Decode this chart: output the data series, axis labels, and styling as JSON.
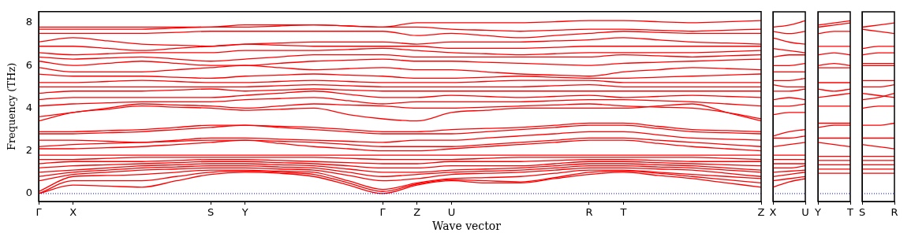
{
  "chart_data": [
    {
      "type": "line",
      "ylabel": "Frequency (THz)",
      "xlabel": "Wave vector",
      "ylim": [
        -0.37,
        8.52
      ],
      "yticks": [
        0,
        2,
        4,
        6,
        8
      ],
      "categories": [
        "Γ",
        "X",
        null,
        null,
        null,
        "S",
        "Y",
        null,
        null,
        null,
        "Γ",
        "Z",
        "U",
        null,
        null,
        null,
        "R",
        "T",
        null,
        null,
        null,
        "Z"
      ],
      "ref_lines": [
        {
          "axis": "y",
          "value": 0,
          "color": "#0000ff",
          "line_style": "dotted"
        }
      ],
      "series": [
        {
          "color": "#ff0000",
          "values": [
            0,
            0.4,
            0.35,
            0.3,
            0.6,
            0.9,
            1.0,
            0.95,
            0.8,
            0.4,
            0,
            0.4,
            0.6,
            0.5,
            0.5,
            0.7,
            0.9,
            1.0,
            0.85,
            0.7,
            0.5,
            0.3
          ]
        },
        {
          "color": "#ff0000",
          "values": [
            0,
            0.6,
            0.6,
            0.6,
            0.8,
            1.0,
            1.05,
            1.0,
            0.9,
            0.5,
            0.1,
            0.45,
            0.65,
            0.6,
            0.55,
            0.75,
            1.0,
            1.05,
            0.95,
            0.8,
            0.65,
            0.5
          ]
        },
        {
          "color": "#ff0000",
          "values": [
            0.1,
            0.8,
            0.85,
            0.9,
            1.0,
            1.1,
            1.1,
            1.05,
            1.0,
            0.6,
            0.2,
            0.5,
            0.7,
            0.75,
            0.8,
            0.95,
            1.1,
            1.1,
            1.0,
            0.9,
            0.8,
            0.7
          ]
        },
        {
          "color": "#ff0000",
          "values": [
            0.6,
            0.9,
            1.0,
            1.1,
            1.15,
            1.2,
            1.2,
            1.15,
            1.1,
            0.85,
            0.6,
            0.7,
            0.9,
            0.95,
            1.0,
            1.1,
            1.2,
            1.2,
            1.15,
            1.1,
            0.95,
            0.8
          ]
        },
        {
          "color": "#ff0000",
          "values": [
            0.8,
            1.0,
            1.1,
            1.2,
            1.25,
            1.3,
            1.3,
            1.25,
            1.2,
            1.0,
            0.8,
            0.9,
            1.0,
            1.05,
            1.1,
            1.2,
            1.3,
            1.3,
            1.25,
            1.2,
            1.1,
            1.0
          ]
        },
        {
          "color": "#ff0000",
          "values": [
            1.0,
            1.1,
            1.2,
            1.3,
            1.35,
            1.4,
            1.4,
            1.35,
            1.3,
            1.15,
            1.0,
            1.0,
            1.1,
            1.15,
            1.2,
            1.3,
            1.4,
            1.4,
            1.35,
            1.3,
            1.2,
            1.1
          ]
        },
        {
          "color": "#ff0000",
          "values": [
            1.2,
            1.3,
            1.35,
            1.4,
            1.45,
            1.5,
            1.5,
            1.45,
            1.4,
            1.3,
            1.2,
            1.2,
            1.3,
            1.3,
            1.3,
            1.4,
            1.5,
            1.5,
            1.45,
            1.4,
            1.35,
            1.3
          ]
        },
        {
          "color": "#ff0000",
          "values": [
            1.4,
            1.5,
            1.5,
            1.5,
            1.55,
            1.6,
            1.6,
            1.55,
            1.5,
            1.45,
            1.4,
            1.4,
            1.5,
            1.5,
            1.5,
            1.55,
            1.6,
            1.6,
            1.55,
            1.5,
            1.5,
            1.5
          ]
        },
        {
          "color": "#ff0000",
          "values": [
            1.6,
            1.6,
            1.65,
            1.7,
            1.7,
            1.7,
            1.7,
            1.7,
            1.7,
            1.65,
            1.6,
            1.6,
            1.6,
            1.65,
            1.7,
            1.7,
            1.7,
            1.7,
            1.7,
            1.7,
            1.65,
            1.6
          ]
        },
        {
          "color": "#ff0000",
          "values": [
            1.8,
            1.8,
            1.8,
            1.8,
            1.8,
            1.8,
            1.8,
            1.8,
            1.8,
            1.8,
            1.8,
            1.8,
            1.8,
            1.8,
            1.8,
            1.8,
            1.8,
            1.8,
            1.8,
            1.8,
            1.8,
            1.8
          ]
        },
        {
          "color": "#ff0000",
          "values": [
            2.1,
            2.1,
            2.15,
            2.2,
            2.3,
            2.4,
            2.5,
            2.35,
            2.2,
            2.1,
            2.0,
            2.0,
            2.1,
            2.2,
            2.3,
            2.4,
            2.5,
            2.5,
            2.35,
            2.2,
            2.1,
            2.0
          ]
        },
        {
          "color": "#ff0000",
          "values": [
            2.2,
            2.3,
            2.35,
            2.4,
            2.45,
            2.5,
            2.5,
            2.45,
            2.4,
            2.3,
            2.2,
            2.2,
            2.2,
            2.3,
            2.4,
            2.5,
            2.6,
            2.6,
            2.5,
            2.4,
            2.3,
            2.2
          ]
        },
        {
          "color": "#ff0000",
          "values": [
            2.5,
            2.5,
            2.45,
            2.4,
            2.5,
            2.6,
            2.6,
            2.55,
            2.5,
            2.45,
            2.4,
            2.5,
            2.5,
            2.6,
            2.7,
            2.8,
            2.9,
            2.9,
            2.75,
            2.6,
            2.55,
            2.5
          ]
        },
        {
          "color": "#ff0000",
          "values": [
            2.8,
            2.8,
            2.85,
            2.9,
            3.0,
            3.1,
            3.2,
            3.1,
            3.0,
            2.9,
            2.8,
            2.8,
            2.8,
            2.9,
            3.0,
            3.1,
            3.2,
            3.2,
            3.05,
            2.9,
            2.85,
            2.8
          ]
        },
        {
          "color": "#ff0000",
          "values": [
            2.9,
            2.9,
            2.95,
            3.0,
            3.1,
            3.2,
            3.2,
            3.15,
            3.1,
            3.0,
            2.9,
            2.9,
            3.0,
            3.05,
            3.1,
            3.2,
            3.3,
            3.3,
            3.15,
            3.0,
            2.95,
            2.9
          ]
        },
        {
          "color": "#ff0000",
          "values": [
            3.4,
            3.8,
            3.95,
            4.1,
            4.05,
            4.0,
            3.9,
            3.95,
            4.0,
            3.7,
            3.5,
            3.4,
            3.8,
            3.9,
            4.0,
            4.0,
            4.0,
            4.0,
            4.1,
            4.2,
            3.8,
            3.4
          ]
        },
        {
          "color": "#ff0000",
          "values": [
            3.6,
            3.8,
            4.0,
            4.2,
            4.15,
            4.1,
            4.0,
            4.1,
            4.2,
            4.15,
            4.1,
            4.0,
            4.0,
            4.05,
            4.1,
            4.15,
            4.2,
            4.1,
            4.05,
            4.0,
            3.8,
            3.5
          ]
        },
        {
          "color": "#ff0000",
          "values": [
            4.1,
            4.2,
            4.25,
            4.3,
            4.3,
            4.3,
            4.4,
            4.45,
            4.5,
            4.35,
            4.2,
            4.3,
            4.3,
            4.3,
            4.3,
            4.35,
            4.4,
            4.4,
            4.35,
            4.3,
            4.2,
            4.1
          ]
        },
        {
          "color": "#ff0000",
          "values": [
            4.4,
            4.5,
            4.5,
            4.5,
            4.5,
            4.5,
            4.6,
            4.7,
            4.8,
            4.65,
            4.5,
            4.5,
            4.6,
            4.55,
            4.5,
            4.55,
            4.6,
            4.5,
            4.55,
            4.6,
            4.55,
            4.5
          ]
        },
        {
          "color": "#ff0000",
          "values": [
            4.7,
            4.8,
            4.8,
            4.8,
            4.85,
            4.9,
            4.8,
            4.85,
            4.9,
            4.85,
            4.8,
            4.8,
            4.8,
            4.8,
            4.8,
            4.8,
            4.8,
            4.8,
            4.8,
            4.8,
            4.8,
            4.8
          ]
        },
        {
          "color": "#ff0000",
          "values": [
            5.0,
            5.0,
            5.0,
            5.0,
            5.0,
            5.0,
            5.0,
            5.05,
            5.1,
            5.05,
            5.0,
            5.0,
            5.0,
            5.0,
            5.0,
            5.05,
            5.1,
            5.0,
            5.0,
            5.0,
            5.0,
            5.0
          ]
        },
        {
          "color": "#ff0000",
          "values": [
            5.2,
            5.2,
            5.25,
            5.3,
            5.25,
            5.2,
            5.2,
            5.25,
            5.3,
            5.25,
            5.2,
            5.2,
            5.2,
            5.25,
            5.3,
            5.3,
            5.3,
            5.2,
            5.2,
            5.2,
            5.2,
            5.2
          ]
        },
        {
          "color": "#ff0000",
          "values": [
            5.6,
            5.5,
            5.5,
            5.5,
            5.45,
            5.4,
            5.5,
            5.55,
            5.6,
            5.55,
            5.5,
            5.4,
            5.4,
            5.45,
            5.5,
            5.45,
            5.4,
            5.4,
            5.45,
            5.5,
            5.55,
            5.6
          ]
        },
        {
          "color": "#ff0000",
          "values": [
            5.9,
            5.7,
            5.7,
            5.7,
            5.8,
            5.9,
            6.0,
            5.9,
            5.8,
            5.85,
            5.9,
            5.8,
            5.8,
            5.7,
            5.6,
            5.55,
            5.5,
            5.7,
            5.8,
            5.9,
            5.85,
            5.8
          ]
        },
        {
          "color": "#ff0000",
          "values": [
            6.2,
            6.0,
            6.1,
            6.2,
            6.1,
            6.0,
            6.0,
            6.1,
            6.2,
            6.25,
            6.3,
            6.2,
            6.2,
            6.15,
            6.1,
            6.05,
            6.0,
            6.1,
            6.15,
            6.2,
            6.25,
            6.3
          ]
        },
        {
          "color": "#ff0000",
          "values": [
            6.4,
            6.3,
            6.35,
            6.4,
            6.3,
            6.2,
            6.3,
            6.4,
            6.5,
            6.5,
            6.5,
            6.4,
            6.4,
            6.4,
            6.4,
            6.4,
            6.4,
            6.5,
            6.45,
            6.4,
            6.45,
            6.5
          ]
        },
        {
          "color": "#ff0000",
          "values": [
            6.6,
            6.5,
            6.55,
            6.6,
            6.6,
            6.6,
            6.7,
            6.7,
            6.7,
            6.75,
            6.8,
            6.7,
            6.6,
            6.55,
            6.5,
            6.55,
            6.6,
            6.6,
            6.6,
            6.6,
            6.65,
            6.7
          ]
        },
        {
          "color": "#ff0000",
          "values": [
            6.9,
            6.9,
            6.8,
            6.7,
            6.8,
            6.9,
            7.0,
            6.95,
            6.9,
            6.9,
            6.9,
            6.9,
            6.8,
            6.8,
            6.8,
            6.85,
            6.9,
            6.9,
            6.9,
            6.9,
            6.9,
            6.9
          ]
        },
        {
          "color": "#ff0000",
          "values": [
            7.1,
            7.3,
            7.15,
            7.0,
            6.95,
            6.9,
            7.0,
            7.05,
            7.1,
            7.1,
            7.1,
            7.0,
            7.1,
            7.1,
            7.1,
            7.15,
            7.2,
            7.3,
            7.2,
            7.1,
            7.05,
            7.0
          ]
        },
        {
          "color": "#ff0000",
          "values": [
            7.5,
            7.5,
            7.5,
            7.5,
            7.55,
            7.6,
            7.6,
            7.6,
            7.6,
            7.6,
            7.6,
            7.4,
            7.5,
            7.4,
            7.3,
            7.4,
            7.5,
            7.6,
            7.55,
            7.5,
            7.5,
            7.5
          ]
        },
        {
          "color": "#ff0000",
          "values": [
            7.7,
            7.7,
            7.7,
            7.7,
            7.75,
            7.8,
            7.8,
            7.85,
            7.9,
            7.85,
            7.8,
            7.8,
            7.7,
            7.65,
            7.6,
            7.65,
            7.7,
            7.7,
            7.65,
            7.6,
            7.65,
            7.7
          ]
        },
        {
          "color": "#ff0000",
          "values": [
            7.8,
            7.8,
            7.8,
            7.8,
            7.8,
            7.8,
            7.9,
            7.9,
            7.9,
            7.85,
            7.8,
            8.0,
            8.0,
            8.0,
            8.0,
            8.05,
            8.1,
            8.1,
            8.05,
            8.0,
            8.05,
            8.1
          ]
        }
      ]
    },
    {
      "type": "line",
      "tick_labels": "x",
      "ylim": [
        -0.37,
        8.52
      ],
      "yticks": [
        0,
        2,
        4,
        6,
        8
      ],
      "categories": [
        "X",
        null,
        "U"
      ],
      "ref_lines": [
        {
          "axis": "y",
          "value": 0,
          "color": "#0000ff",
          "line_style": "dotted"
        }
      ],
      "series": [
        {
          "color": "#ff0000",
          "values": [
            0.3,
            0.55,
            0.7
          ]
        },
        {
          "color": "#ff0000",
          "values": [
            0.6,
            0.7,
            0.8
          ]
        },
        {
          "color": "#ff0000",
          "values": [
            0.8,
            0.9,
            1.0
          ]
        },
        {
          "color": "#ff0000",
          "values": [
            1.0,
            1.05,
            1.1
          ]
        },
        {
          "color": "#ff0000",
          "values": [
            1.2,
            1.2,
            1.3
          ]
        },
        {
          "color": "#ff0000",
          "values": [
            1.4,
            1.4,
            1.4
          ]
        },
        {
          "color": "#ff0000",
          "values": [
            1.6,
            1.6,
            1.6
          ]
        },
        {
          "color": "#ff0000",
          "values": [
            1.8,
            1.8,
            1.8
          ]
        },
        {
          "color": "#ff0000",
          "values": [
            2.2,
            2.3,
            2.4
          ]
        },
        {
          "color": "#ff0000",
          "values": [
            2.6,
            2.6,
            2.7
          ]
        },
        {
          "color": "#ff0000",
          "values": [
            2.7,
            2.9,
            3.0
          ]
        },
        {
          "color": "#ff0000",
          "values": [
            3.7,
            3.8,
            3.8
          ]
        },
        {
          "color": "#ff0000",
          "values": [
            4.1,
            4.1,
            4.2
          ]
        },
        {
          "color": "#ff0000",
          "values": [
            4.4,
            4.5,
            4.4
          ]
        },
        {
          "color": "#ff0000",
          "values": [
            4.8,
            4.8,
            4.9
          ]
        },
        {
          "color": "#ff0000",
          "values": [
            5.1,
            5.0,
            5.0
          ]
        },
        {
          "color": "#ff0000",
          "values": [
            5.3,
            5.3,
            5.4
          ]
        },
        {
          "color": "#ff0000",
          "values": [
            5.7,
            5.7,
            5.7
          ]
        },
        {
          "color": "#ff0000",
          "values": [
            6.0,
            6.0,
            6.1
          ]
        },
        {
          "color": "#ff0000",
          "values": [
            6.4,
            6.5,
            6.5
          ]
        },
        {
          "color": "#ff0000",
          "values": [
            6.8,
            6.7,
            6.6
          ]
        },
        {
          "color": "#ff0000",
          "values": [
            7.3,
            7.1,
            7.0
          ]
        },
        {
          "color": "#ff0000",
          "values": [
            7.6,
            7.5,
            7.6
          ]
        },
        {
          "color": "#ff0000",
          "values": [
            7.8,
            7.9,
            8.1
          ]
        }
      ]
    },
    {
      "type": "line",
      "tick_labels": "x",
      "ylim": [
        -0.37,
        8.52
      ],
      "yticks": [
        0,
        2,
        4,
        6,
        8
      ],
      "categories": [
        "Y",
        null,
        "T"
      ],
      "ref_lines": [
        {
          "axis": "y",
          "value": 0,
          "color": "#0000ff",
          "line_style": "dotted"
        }
      ],
      "series": [
        {
          "color": "#ff0000",
          "values": [
            0.95,
            0.95,
            0.95
          ]
        },
        {
          "color": "#ff0000",
          "values": [
            1.15,
            1.15,
            1.15
          ]
        },
        {
          "color": "#ff0000",
          "values": [
            1.35,
            1.35,
            1.35
          ]
        },
        {
          "color": "#ff0000",
          "values": [
            1.55,
            1.55,
            1.55
          ]
        },
        {
          "color": "#ff0000",
          "values": [
            1.75,
            1.75,
            1.75
          ]
        },
        {
          "color": "#ff0000",
          "values": [
            2.4,
            2.3,
            2.2
          ]
        },
        {
          "color": "#ff0000",
          "values": [
            2.6,
            2.6,
            2.6
          ]
        },
        {
          "color": "#ff0000",
          "values": [
            3.1,
            3.2,
            3.2
          ]
        },
        {
          "color": "#ff0000",
          "values": [
            3.3,
            3.3,
            3.3
          ]
        },
        {
          "color": "#ff0000",
          "values": [
            4.1,
            4.1,
            4.1
          ]
        },
        {
          "color": "#ff0000",
          "values": [
            4.5,
            4.6,
            4.7
          ]
        },
        {
          "color": "#ff0000",
          "values": [
            4.9,
            4.8,
            4.9
          ]
        },
        {
          "color": "#ff0000",
          "values": [
            5.2,
            5.2,
            5.2
          ]
        },
        {
          "color": "#ff0000",
          "values": [
            5.9,
            5.9,
            5.9
          ]
        },
        {
          "color": "#ff0000",
          "values": [
            6.0,
            6.1,
            6.0
          ]
        },
        {
          "color": "#ff0000",
          "values": [
            6.5,
            6.6,
            6.5
          ]
        },
        {
          "color": "#ff0000",
          "values": [
            6.9,
            6.9,
            6.9
          ]
        },
        {
          "color": "#ff0000",
          "values": [
            7.5,
            7.6,
            7.6
          ]
        },
        {
          "color": "#ff0000",
          "values": [
            7.8,
            7.9,
            8.0
          ]
        },
        {
          "color": "#ff0000",
          "values": [
            7.9,
            8.0,
            8.1
          ]
        }
      ]
    },
    {
      "type": "line",
      "tick_labels": "x",
      "ylim": [
        -0.37,
        8.52
      ],
      "yticks": [
        0,
        2,
        4,
        6,
        8
      ],
      "categories": [
        "S",
        null,
        "R"
      ],
      "ref_lines": [
        {
          "axis": "y",
          "value": 0,
          "color": "#0000ff",
          "line_style": "dotted"
        }
      ],
      "series": [
        {
          "color": "#ff0000",
          "values": [
            0.95,
            0.95,
            0.95
          ]
        },
        {
          "color": "#ff0000",
          "values": [
            1.15,
            1.15,
            1.15
          ]
        },
        {
          "color": "#ff0000",
          "values": [
            1.35,
            1.35,
            1.35
          ]
        },
        {
          "color": "#ff0000",
          "values": [
            1.55,
            1.55,
            1.55
          ]
        },
        {
          "color": "#ff0000",
          "values": [
            1.75,
            1.75,
            1.75
          ]
        },
        {
          "color": "#ff0000",
          "values": [
            2.3,
            2.2,
            2.1
          ]
        },
        {
          "color": "#ff0000",
          "values": [
            2.6,
            2.6,
            2.6
          ]
        },
        {
          "color": "#ff0000",
          "values": [
            3.2,
            3.2,
            3.3
          ]
        },
        {
          "color": "#ff0000",
          "values": [
            4.0,
            4.1,
            4.1
          ]
        },
        {
          "color": "#ff0000",
          "values": [
            4.4,
            4.5,
            4.7
          ]
        },
        {
          "color": "#ff0000",
          "values": [
            4.7,
            4.6,
            4.5
          ]
        },
        {
          "color": "#ff0000",
          "values": [
            5.0,
            5.0,
            5.1
          ]
        },
        {
          "color": "#ff0000",
          "values": [
            5.3,
            5.3,
            5.3
          ]
        },
        {
          "color": "#ff0000",
          "values": [
            6.0,
            6.0,
            6.0
          ]
        },
        {
          "color": "#ff0000",
          "values": [
            6.1,
            6.1,
            6.1
          ]
        },
        {
          "color": "#ff0000",
          "values": [
            6.5,
            6.6,
            6.6
          ]
        },
        {
          "color": "#ff0000",
          "values": [
            6.8,
            6.9,
            6.9
          ]
        },
        {
          "color": "#ff0000",
          "values": [
            7.7,
            7.6,
            7.5
          ]
        },
        {
          "color": "#ff0000",
          "values": [
            7.8,
            7.9,
            8.0
          ]
        }
      ]
    }
  ]
}
